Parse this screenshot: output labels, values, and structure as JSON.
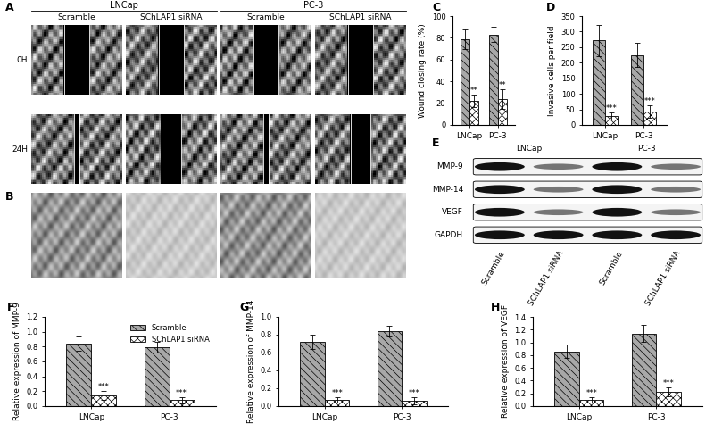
{
  "figure": {
    "panel_A": {
      "label": "A",
      "cell_lines": [
        "LNCap",
        "PC-3"
      ],
      "conditions": [
        "Scramble",
        "SChLAP1 siRNA"
      ],
      "times": [
        "0H",
        "24H"
      ]
    },
    "panel_B": {
      "label": "B"
    },
    "panel_E": {
      "label": "E",
      "cell_lines": [
        "LNCap",
        "PC-3"
      ],
      "lanes": [
        "Scramble",
        "SChLAP1 siRNA",
        "Scramble",
        "SChLAP1 siRNA"
      ],
      "proteins": [
        "MMP-9",
        "MMP-14",
        "VEGF",
        "GAPDH"
      ]
    }
  },
  "chart_data": [
    {
      "panel": "C",
      "type": "bar",
      "y_label": "Wound closing rate (%)",
      "categories": [
        "LNCap",
        "PC-3"
      ],
      "series": [
        {
          "color": "#a8a8a8",
          "values": [
            79,
            83
          ],
          "errors": [
            9,
            7
          ]
        },
        {
          "color": "#ffffff",
          "values": [
            22,
            24
          ],
          "errors": [
            6,
            9
          ],
          "significance": [
            "**",
            "**"
          ]
        }
      ],
      "ylim": [
        0,
        100
      ],
      "yticks": [
        0,
        20,
        40,
        60,
        80,
        100
      ]
    },
    {
      "panel": "D",
      "type": "bar",
      "y_label": "Invasive cells per field",
      "categories": [
        "LNCap",
        "PC-3"
      ],
      "series": [
        {
          "color": "#a8a8a8",
          "values": [
            272,
            225
          ],
          "errors": [
            50,
            38
          ]
        },
        {
          "color": "#ffffff",
          "values": [
            28,
            42
          ],
          "errors": [
            12,
            20
          ],
          "significance": [
            "***",
            "***"
          ]
        }
      ],
      "ylim": [
        0,
        350
      ],
      "yticks": [
        0,
        50,
        100,
        150,
        200,
        250,
        300,
        350
      ]
    },
    {
      "panel": "F",
      "type": "bar",
      "y_label": "Relative expression of MMP-9",
      "categories": [
        "LNCap",
        "PC-3"
      ],
      "series": [
        {
          "name": "Scramble",
          "color": "#a8a8a8",
          "values": [
            0.84,
            0.79
          ],
          "errors": [
            0.1,
            0.07
          ]
        },
        {
          "name": "SChLAP1 siRNA",
          "color": "#ffffff",
          "values": [
            0.14,
            0.08
          ],
          "errors": [
            0.06,
            0.04
          ],
          "significance": [
            "***",
            "***"
          ]
        }
      ],
      "legend": "upper right",
      "ylim": [
        0,
        1.2
      ],
      "yticks": [
        {
          "value": 0,
          "label": "0.0"
        },
        0.2,
        0.4,
        0.6,
        0.8,
        {
          "value": 1,
          "label": "1.0"
        },
        1.2
      ]
    },
    {
      "panel": "G",
      "type": "bar",
      "y_label": "Relative expression of MMP-14",
      "categories": [
        "LNCap",
        "PC-3"
      ],
      "series": [
        {
          "color": "#a8a8a8",
          "values": [
            0.72,
            0.84
          ],
          "errors": [
            0.08,
            0.06
          ]
        },
        {
          "color": "#ffffff",
          "values": [
            0.07,
            0.06
          ],
          "errors": [
            0.03,
            0.04
          ],
          "significance": [
            "***",
            "***"
          ]
        }
      ],
      "ylim": [
        0,
        1.0
      ],
      "yticks": [
        {
          "value": 0,
          "label": "0.0"
        },
        0.2,
        0.4,
        0.6,
        0.8,
        {
          "value": 1,
          "label": "1.0"
        }
      ]
    },
    {
      "panel": "H",
      "type": "bar",
      "y_label": "Relative expression of VEGF",
      "categories": [
        "LNCap",
        "PC-3"
      ],
      "series": [
        {
          "color": "#a8a8a8",
          "values": [
            0.86,
            1.14
          ],
          "errors": [
            0.1,
            0.13
          ]
        },
        {
          "color": "#ffffff",
          "values": [
            0.1,
            0.22
          ],
          "errors": [
            0.04,
            0.07
          ],
          "significance": [
            "***",
            "***"
          ]
        }
      ],
      "ylim": [
        0,
        1.4
      ],
      "yticks": [
        {
          "value": 0,
          "label": "0.0"
        },
        0.2,
        0.4,
        0.6,
        0.8,
        {
          "value": 1,
          "label": "1.0"
        },
        1.2,
        1.4
      ]
    }
  ]
}
